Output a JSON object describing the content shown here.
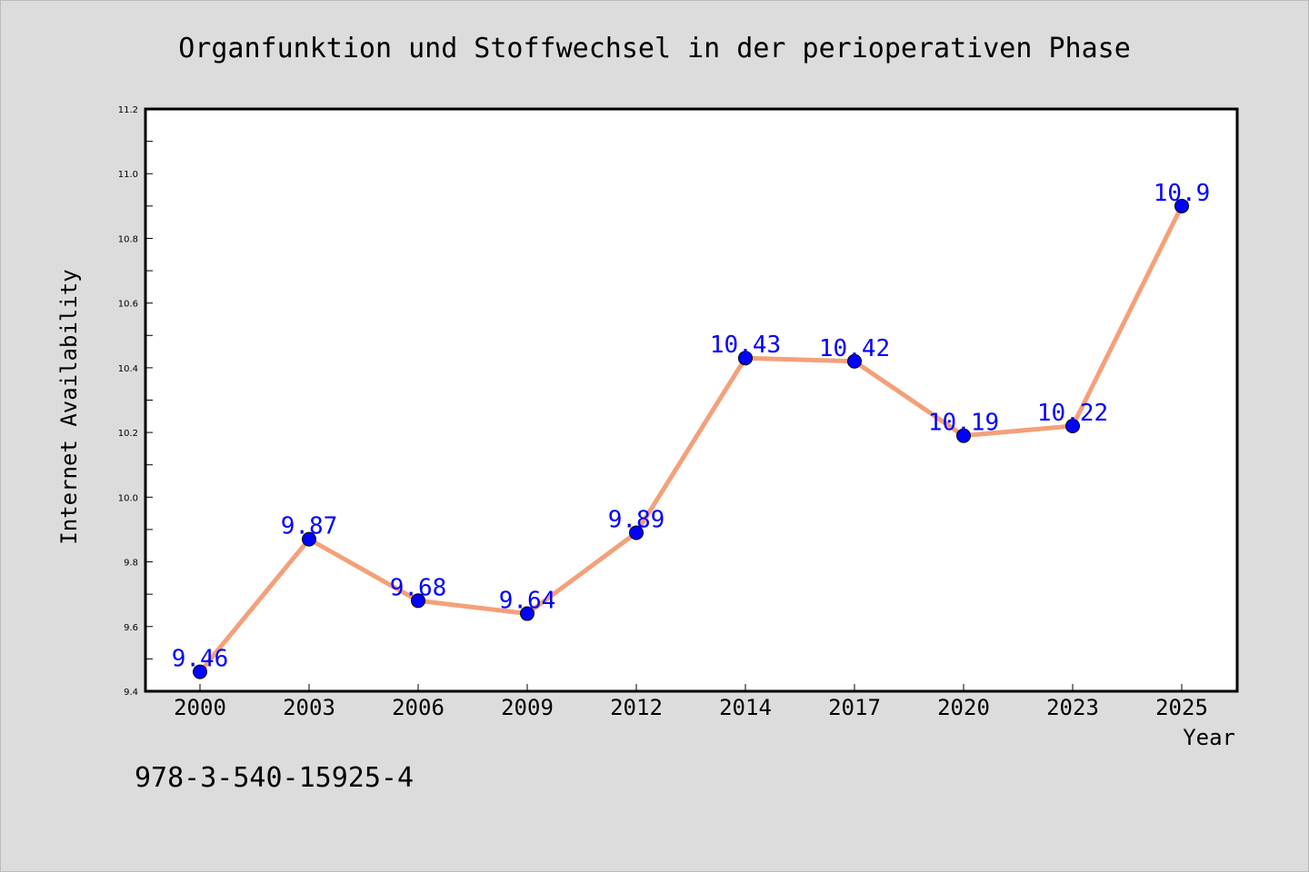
{
  "chart_data": {
    "type": "line",
    "title": "Organfunktion und Stoffwechsel in der perioperativen Phase",
    "xlabel": "Year",
    "ylabel": "Internet Availability",
    "categories": [
      "2000",
      "2003",
      "2006",
      "2009",
      "2012",
      "2014",
      "2017",
      "2020",
      "2023",
      "2025"
    ],
    "series": [
      {
        "values": [
          9.46,
          9.87,
          9.68,
          9.64,
          9.89,
          10.43,
          10.42,
          10.19,
          10.22,
          10.9
        ],
        "labels": [
          "9.46",
          "9.87",
          "9.68",
          "9.64",
          "9.89",
          "10.43",
          "10.42",
          "10.19",
          "10.22",
          "10.9"
        ]
      }
    ],
    "ylim": [
      9.4,
      11.2
    ],
    "yticks": [
      "9.4",
      "9.6",
      "9.8",
      "10.0",
      "10.2",
      "10.4",
      "10.6",
      "10.8",
      "11.0",
      "11.2"
    ],
    "grid": false,
    "line_color": "#f4a07a",
    "marker_color": "#0000ff",
    "label_color": "#0000ff"
  },
  "footer_text": "978-3-540-15925-4",
  "colors": {
    "background": "#dcdcdc",
    "plot_background": "#ffffff"
  }
}
